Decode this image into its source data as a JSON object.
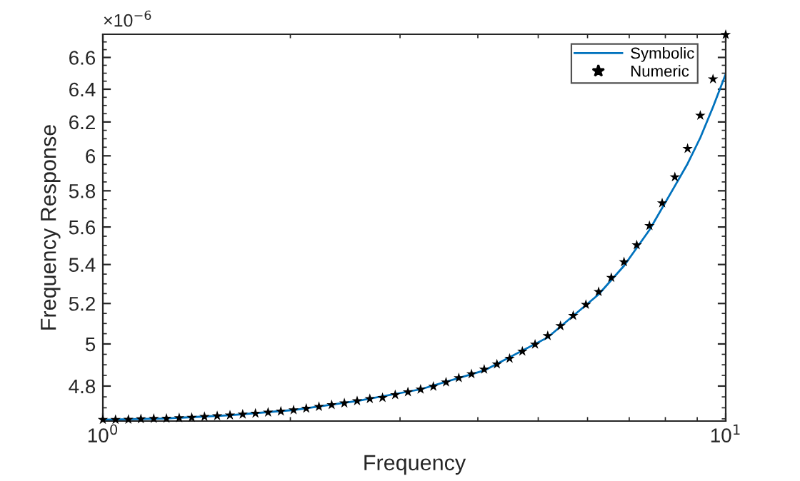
{
  "chart_data": {
    "type": "line",
    "xlabel": "Frequency",
    "ylabel": "Frequency Response",
    "log": "xy",
    "grid": false,
    "legend": "top right",
    "xlim": [
      1,
      10
    ],
    "xticks": [
      {
        "value": 1,
        "label": "10$^{0}$"
      },
      {
        "value": 10,
        "label": "10$^{1}$"
      }
    ],
    "ylim": [
      4.64,
      6.75
    ],
    "yticks": [
      4.8,
      5,
      5.2,
      5.4,
      5.6,
      5.8,
      6,
      6.2,
      6.4,
      6.6
    ],
    "annotations": [
      "×10$^{−6}$"
    ],
    "series": [
      {
        "name": "Symbolic",
        "color": "#0072bd",
        "marker": "none",
        "line_style": "solid",
        "x": [
          1.0,
          1.265,
          1.6,
          2.024,
          2.56,
          3.237,
          4.095,
          5.179,
          6.251,
          6.866,
          7.543,
          8.286,
          8.685,
          9.103,
          9.541,
          10.0
        ],
        "values": [
          4.646,
          4.652,
          4.666,
          4.69,
          4.731,
          4.785,
          4.873,
          5.032,
          5.246,
          5.393,
          5.584,
          5.827,
          5.954,
          6.106,
          6.29,
          6.495
        ]
      },
      {
        "name": "Numeric",
        "type": "scatter",
        "color": "#000000",
        "marker": "star",
        "x": [
          1.0,
          1.048,
          1.099,
          1.151,
          1.207,
          1.265,
          1.326,
          1.389,
          1.456,
          1.526,
          1.6,
          1.677,
          1.758,
          1.842,
          1.931,
          2.024,
          2.121,
          2.223,
          2.33,
          2.442,
          2.56,
          2.683,
          2.812,
          2.947,
          3.089,
          3.237,
          3.393,
          3.556,
          3.728,
          3.907,
          4.095,
          4.292,
          4.498,
          4.715,
          4.942,
          5.179,
          5.429,
          5.69,
          5.964,
          6.251,
          6.551,
          6.866,
          7.197,
          7.543,
          7.906,
          8.286,
          8.685,
          9.103,
          9.541,
          10.0
        ],
        "values": [
          4.646,
          4.646,
          4.647,
          4.649,
          4.651,
          4.652,
          4.654,
          4.656,
          4.66,
          4.663,
          4.666,
          4.67,
          4.674,
          4.679,
          4.684,
          4.69,
          4.697,
          4.705,
          4.713,
          4.721,
          4.731,
          4.741,
          4.746,
          4.759,
          4.772,
          4.785,
          4.798,
          4.818,
          4.838,
          4.856,
          4.878,
          4.903,
          4.93,
          4.964,
          4.998,
          5.039,
          5.088,
          5.139,
          5.194,
          5.259,
          5.332,
          5.413,
          5.503,
          5.607,
          5.731,
          5.878,
          6.042,
          6.239,
          6.463,
          6.747
        ]
      }
    ]
  }
}
